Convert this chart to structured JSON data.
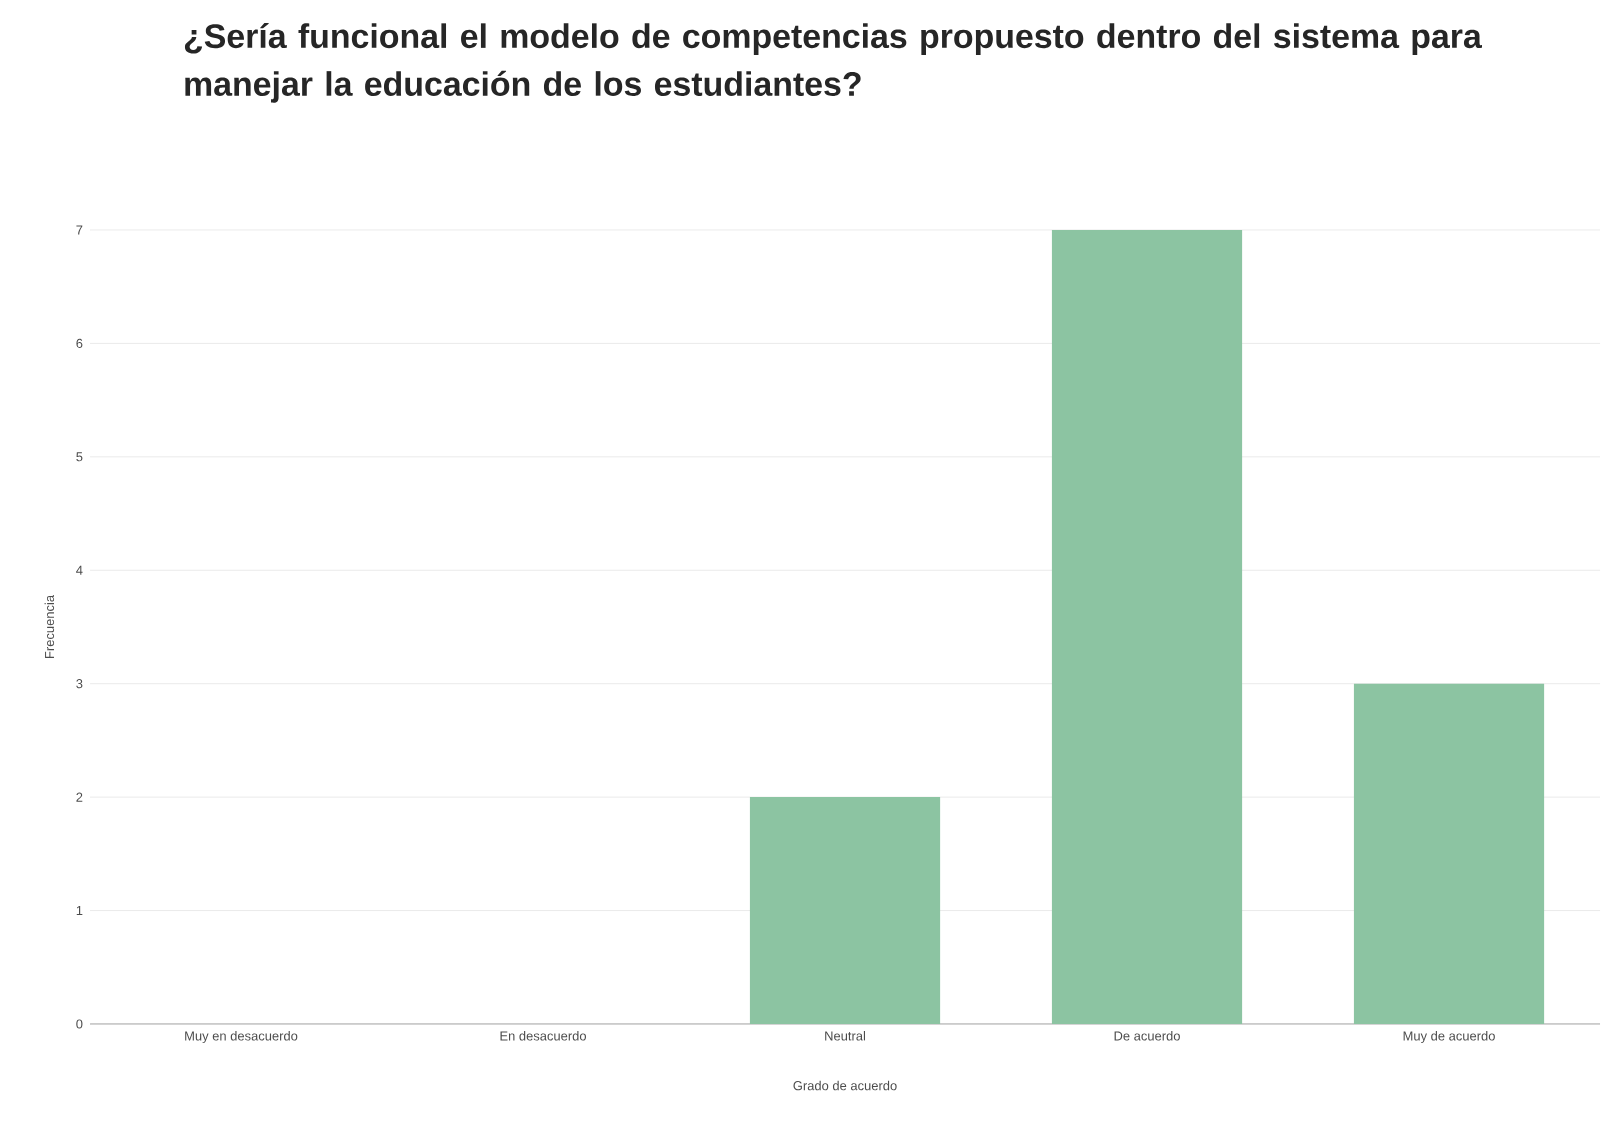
{
  "chart_data": {
    "type": "bar",
    "title": "¿Sería funcional el modelo de competencias propuesto dentro del sistema para manejar la educación de los estudiantes?",
    "xlabel": "Grado de acuerdo",
    "ylabel": "Frecuencia",
    "categories": [
      "Muy en desacuerdo",
      "En desacuerdo",
      "Neutral",
      "De acuerdo",
      "Muy de acuerdo"
    ],
    "values": [
      0,
      0,
      2,
      7,
      3
    ],
    "color": "#8cc4a2",
    "ylim": [
      0,
      7
    ],
    "yticks": [
      0,
      1,
      2,
      3,
      4,
      5,
      6,
      7
    ],
    "grid": "y"
  }
}
